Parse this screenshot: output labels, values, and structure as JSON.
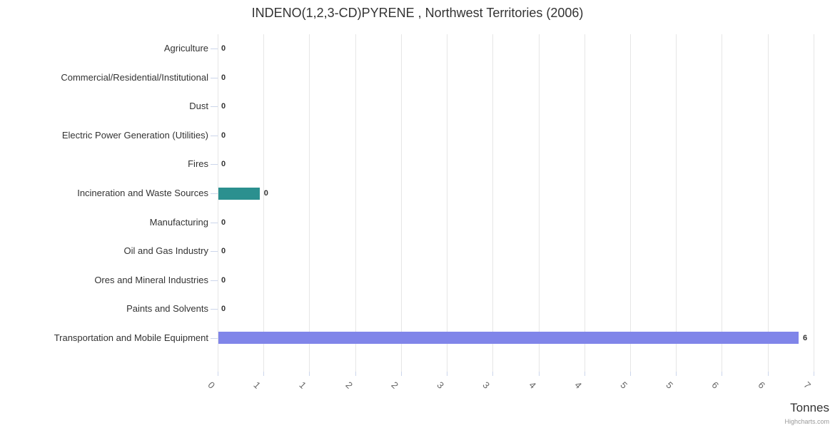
{
  "chart_data": {
    "type": "bar",
    "orientation": "horizontal",
    "title": "INDENO(1,2,3-CD)PYRENE , Northwest Territories (2006)",
    "categories": [
      "Agriculture",
      "Commercial/Residential/Institutional",
      "Dust",
      "Electric Power Generation (Utilities)",
      "Fires",
      "Incineration and Waste Sources",
      "Manufacturing",
      "Oil and Gas Industry",
      "Ores and Mineral Industries",
      "Paints and Solvents",
      "Transportation and Mobile Equipment"
    ],
    "values": [
      0,
      0,
      0,
      0,
      0,
      0.45,
      0,
      0,
      0,
      0,
      6.33
    ],
    "value_labels": [
      "0",
      "0",
      "0",
      "0",
      "0",
      "0",
      "0",
      "0",
      "0",
      "0",
      "6"
    ],
    "bar_colors": [
      null,
      null,
      null,
      null,
      null,
      "#2b908f",
      null,
      null,
      null,
      null,
      "#8085e9"
    ],
    "xlabel": "Tonnes",
    "ylabel": "",
    "xlim": [
      0,
      6.68
    ],
    "xticks": [
      {
        "value": 0,
        "label": "0"
      },
      {
        "value": 0.5,
        "label": "1"
      },
      {
        "value": 1,
        "label": "1"
      },
      {
        "value": 1.5,
        "label": "2"
      },
      {
        "value": 2,
        "label": "2"
      },
      {
        "value": 2.5,
        "label": "3"
      },
      {
        "value": 3,
        "label": "3"
      },
      {
        "value": 3.5,
        "label": "4"
      },
      {
        "value": 4,
        "label": "4"
      },
      {
        "value": 4.5,
        "label": "5"
      },
      {
        "value": 5,
        "label": "5"
      },
      {
        "value": 5.5,
        "label": "6"
      },
      {
        "value": 6,
        "label": "6"
      },
      {
        "value": 6.5,
        "label": "7"
      }
    ],
    "grid": true,
    "legend": "none",
    "colors": {
      "grid": "#e6e6e6",
      "tick": "#ccd6eb",
      "title": "#333333",
      "category_label": "#333333",
      "x_tick_label": "#666666",
      "data_label": "#333333"
    },
    "credit": "Highcharts.com"
  }
}
